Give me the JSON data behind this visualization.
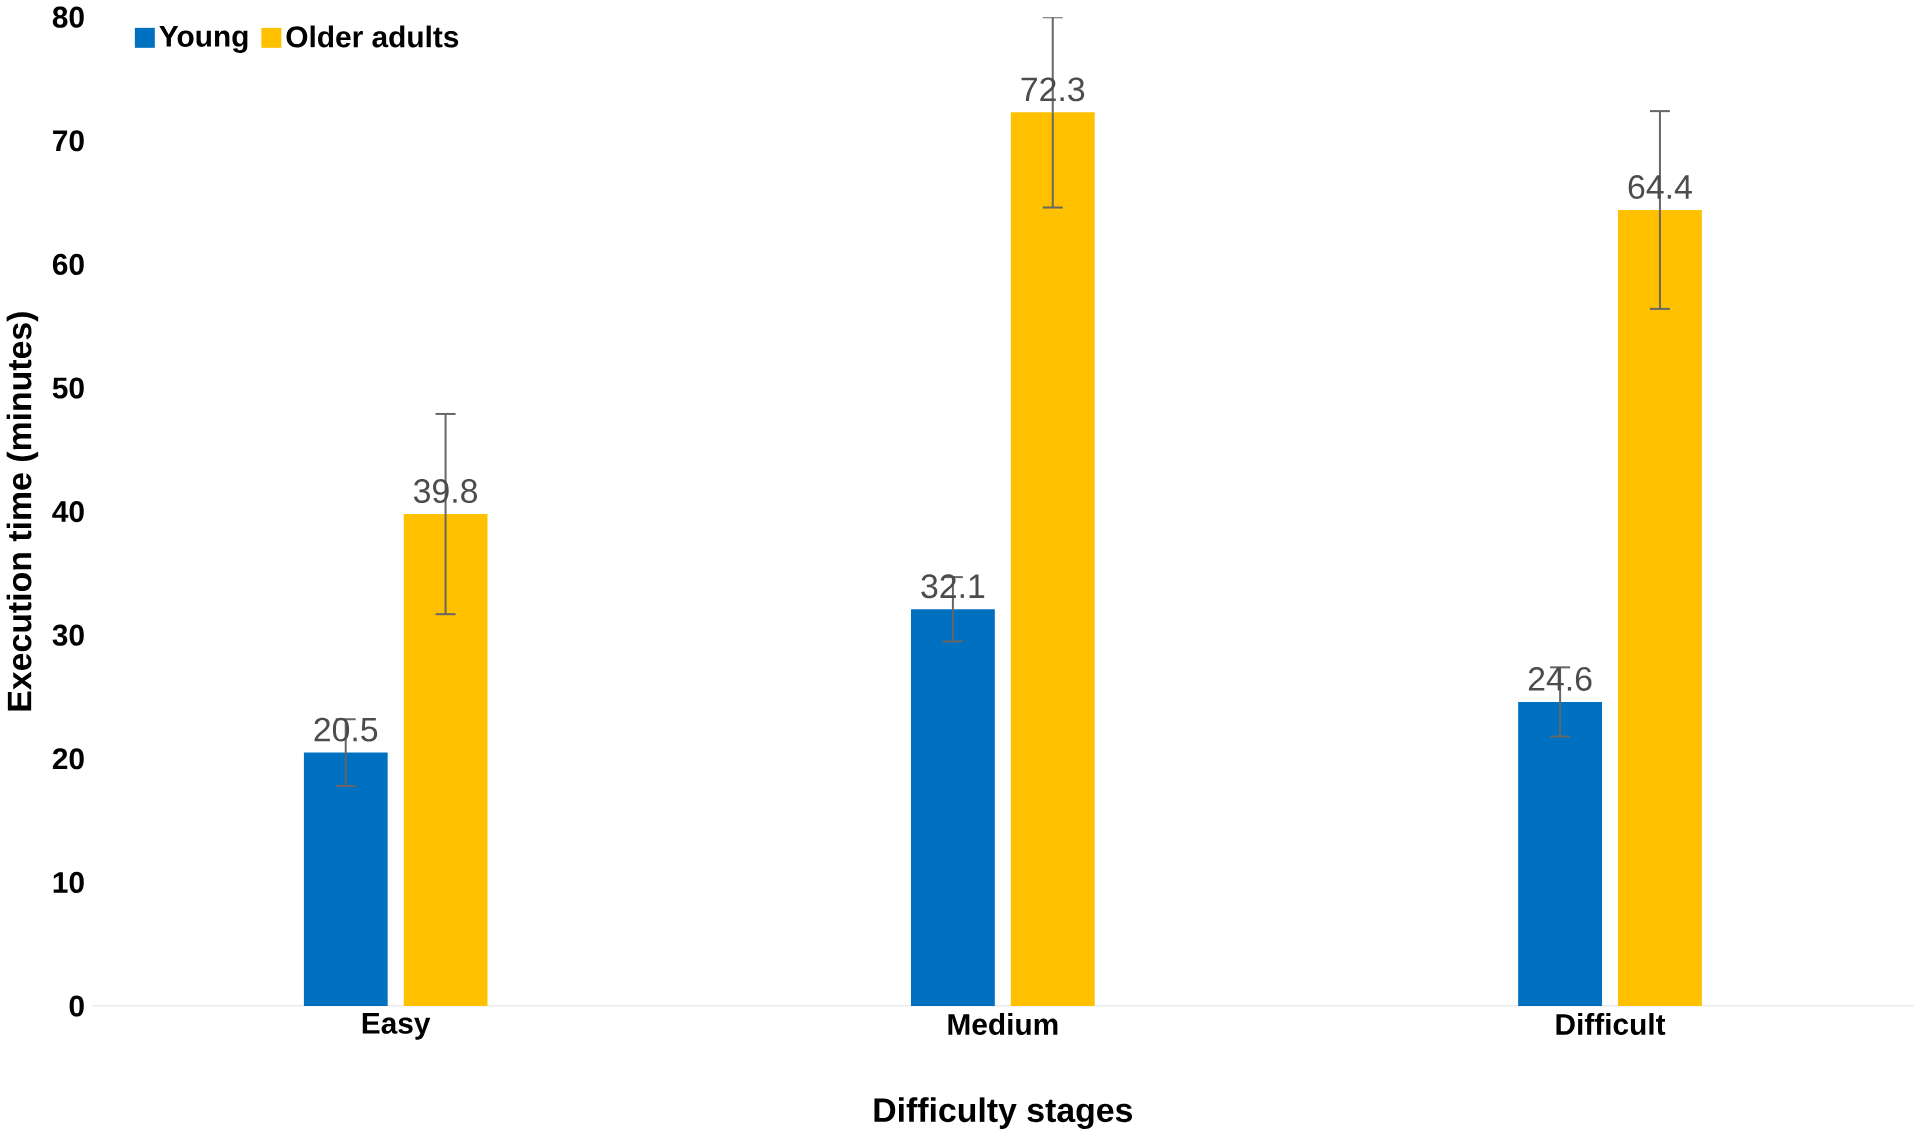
{
  "chart_data": {
    "type": "bar",
    "xlabel": "Difficulty stages",
    "ylabel": "Execution time (minutes)",
    "categories": [
      "Easy",
      "Medium",
      "Difficult"
    ],
    "series": [
      {
        "name": "Young",
        "color": "#0070c0",
        "values": [
          20.5,
          32.1,
          24.6
        ],
        "errors": [
          2.7,
          2.6,
          2.8
        ]
      },
      {
        "name": "Older adults",
        "color": "#ffc000",
        "values": [
          39.8,
          72.3,
          64.4
        ],
        "errors": [
          8.1,
          7.7,
          8.0
        ]
      }
    ],
    "ylim": [
      0,
      80
    ],
    "yticks": [
      0,
      10,
      20,
      30,
      40,
      50,
      60,
      70,
      80
    ],
    "data_labels": true,
    "legend": "top left"
  }
}
